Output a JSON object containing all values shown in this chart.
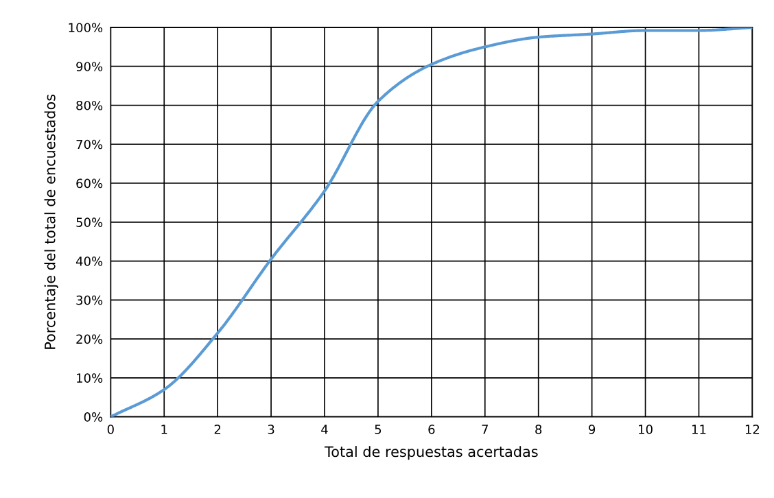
{
  "chart_data": {
    "type": "line",
    "xlabel": "Total de respuestas acertadas",
    "ylabel": "Porcentaje del total de encuestados",
    "x": [
      0,
      1,
      2,
      3,
      4,
      5,
      6,
      7,
      8,
      9,
      10,
      11,
      12
    ],
    "series": [
      {
        "color": "#5b9bd5",
        "values": [
          0,
          7,
          21.5,
          40.5,
          58,
          81,
          90.5,
          95,
          97.5,
          98.3,
          99.2,
          99.2,
          100
        ]
      }
    ],
    "xlim": [
      0,
      12
    ],
    "xticks": [
      0,
      1,
      2,
      3,
      4,
      5,
      6,
      7,
      8,
      9,
      10,
      11,
      12
    ],
    "ylim": [
      0,
      100
    ],
    "yticks": [
      {
        "value": 0,
        "label": "0%"
      },
      {
        "value": 10,
        "label": "10%"
      },
      {
        "value": 20,
        "label": "20%"
      },
      {
        "value": 30,
        "label": "30%"
      },
      {
        "value": 40,
        "label": "40%"
      },
      {
        "value": 50,
        "label": "50%"
      },
      {
        "value": 60,
        "label": "60%"
      },
      {
        "value": 70,
        "label": "70%"
      },
      {
        "value": 80,
        "label": "80%"
      },
      {
        "value": 90,
        "label": "90%"
      },
      {
        "value": 100,
        "label": "100%"
      }
    ],
    "grid": true,
    "marker": "none",
    "line_style": "solid"
  }
}
